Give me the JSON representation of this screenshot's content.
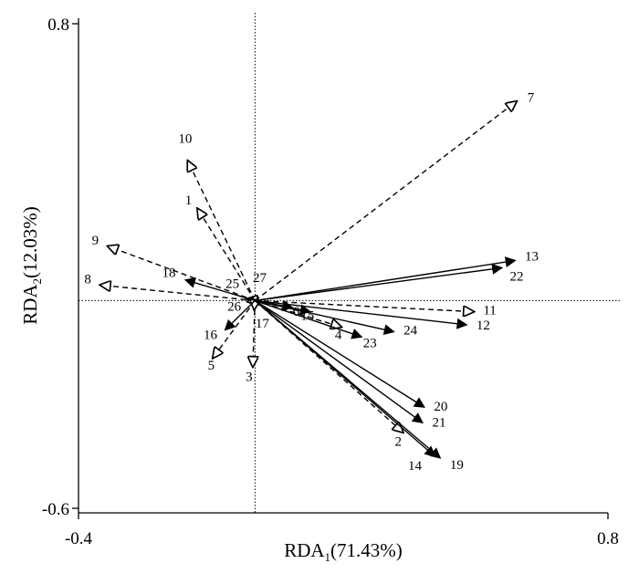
{
  "chart_data": {
    "type": "biplot",
    "xlim": [
      -0.4,
      0.8
    ],
    "ylim": [
      -0.6,
      0.8
    ],
    "xticks": [
      {
        "value": -0.4,
        "label": "-0.4"
      },
      {
        "value": 0.8,
        "label": "0.8"
      }
    ],
    "yticks": [
      {
        "value": 0.8,
        "label": "0.8"
      },
      {
        "value": -0.6,
        "label": "-0.6"
      }
    ],
    "xlabel": {
      "base": "RDA",
      "sub": "1",
      "rest": "(71.43%)"
    },
    "ylabel": {
      "base": "RDA",
      "sub": "2",
      "rest": "(12.03%)"
    },
    "reference_lines": {
      "x": 0,
      "y": 0
    },
    "series": [
      {
        "style": "dashed-open-arrow",
        "vectors": [
          {
            "label": "1",
            "x": -0.13,
            "y": 0.265
          },
          {
            "label": "3",
            "x": -0.005,
            "y": -0.19
          },
          {
            "label": "5",
            "x": -0.095,
            "y": -0.165
          },
          {
            "label": "7",
            "x": 0.592,
            "y": 0.575
          },
          {
            "label": "8",
            "x": -0.35,
            "y": 0.045
          },
          {
            "label": "9",
            "x": -0.333,
            "y": 0.157
          },
          {
            "label": "10",
            "x": -0.152,
            "y": 0.403
          },
          {
            "label": "11",
            "x": 0.495,
            "y": -0.032
          },
          {
            "label": "2",
            "x": 0.335,
            "y": -0.38
          },
          {
            "label": "4",
            "x": 0.195,
            "y": -0.076
          },
          {
            "label": "25",
            "x": -0.018,
            "y": 0.005
          },
          {
            "label": "26",
            "x": -0.016,
            "y": -0.003
          },
          {
            "label": "27",
            "x": -0.01,
            "y": 0.006
          },
          {
            "label": "17",
            "x": -0.002,
            "y": -0.025
          }
        ]
      },
      {
        "style": "solid-filled-arrow",
        "vectors": [
          {
            "label": "6",
            "x": 0.085,
            "y": -0.02
          },
          {
            "label": "12",
            "x": 0.48,
            "y": -0.07
          },
          {
            "label": "13",
            "x": 0.59,
            "y": 0.116
          },
          {
            "label": "14",
            "x": 0.408,
            "y": -0.45
          },
          {
            "label": "15",
            "x": 0.125,
            "y": -0.032
          },
          {
            "label": "16",
            "x": -0.068,
            "y": -0.085
          },
          {
            "label": "18",
            "x": -0.158,
            "y": 0.06
          },
          {
            "label": "19",
            "x": 0.42,
            "y": -0.455
          },
          {
            "label": "20",
            "x": 0.384,
            "y": -0.308
          },
          {
            "label": "21",
            "x": 0.38,
            "y": -0.353
          },
          {
            "label": "22",
            "x": 0.56,
            "y": 0.095
          },
          {
            "label": "23",
            "x": 0.242,
            "y": -0.105
          },
          {
            "label": "24",
            "x": 0.315,
            "y": -0.09
          }
        ]
      }
    ],
    "label_offsets": {
      "1": [
        -10,
        -5
      ],
      "2": [
        -5,
        15
      ],
      "3": [
        -4,
        16
      ],
      "4": [
        -3,
        13
      ],
      "5": [
        -2,
        13
      ],
      "6": [
        4,
        9
      ],
      "7": [
        16,
        0
      ],
      "8": [
        -14,
        -2
      ],
      "9": [
        -14,
        -2
      ],
      "10": [
        -3,
        -20
      ],
      "11": [
        18,
        3
      ],
      "12": [
        18,
        5
      ],
      "13": [
        18,
        0
      ],
      "14": [
        -22,
        15
      ],
      "15": [
        -3,
        9
      ],
      "16": [
        -16,
        10
      ],
      "17": [
        9,
        20
      ],
      "18": [
        -18,
        -3
      ],
      "19": [
        18,
        12
      ],
      "20": [
        18,
        4
      ],
      "21": [
        18,
        4
      ],
      "22": [
        16,
        14
      ],
      "23": [
        9,
        11
      ],
      "24": [
        18,
        3
      ],
      "25": [
        -16,
        -12
      ],
      "26": [
        -15,
        10
      ],
      "27": [
        10,
        -18
      ]
    }
  }
}
